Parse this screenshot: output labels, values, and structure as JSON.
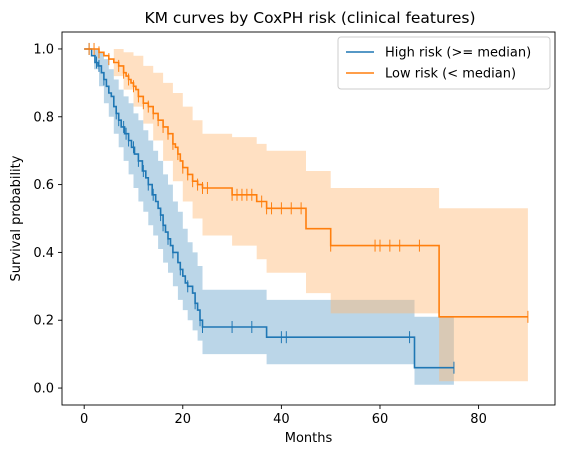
{
  "chart_data": {
    "type": "line",
    "title": "KM curves by CoxPH risk (clinical features)",
    "xlabel": "Months",
    "ylabel": "Survival probability",
    "xlim": [
      -4.5,
      95.5
    ],
    "ylim": [
      -0.05,
      1.05
    ],
    "xticks": [
      0,
      20,
      40,
      60,
      80
    ],
    "yticks": [
      0.0,
      0.2,
      0.4,
      0.6,
      0.8,
      1.0
    ],
    "legend_position": "top-right",
    "grid": false,
    "series": [
      {
        "name": "High risk (>= median)",
        "color": "#1f77b4",
        "fill_color": "#1f77b4",
        "steps": [
          [
            0,
            1.0
          ],
          [
            1.5,
            0.98
          ],
          [
            2.2,
            0.96
          ],
          [
            2.8,
            0.95
          ],
          [
            3.5,
            0.93
          ],
          [
            4.0,
            0.91
          ],
          [
            4.5,
            0.89
          ],
          [
            5.0,
            0.87
          ],
          [
            5.5,
            0.86
          ],
          [
            6.0,
            0.83
          ],
          [
            6.5,
            0.81
          ],
          [
            7.0,
            0.79
          ],
          [
            7.5,
            0.77
          ],
          [
            8.2,
            0.75
          ],
          [
            9.0,
            0.73
          ],
          [
            9.6,
            0.71
          ],
          [
            10.2,
            0.69
          ],
          [
            11.0,
            0.67
          ],
          [
            11.8,
            0.64
          ],
          [
            12.5,
            0.62
          ],
          [
            13.0,
            0.6
          ],
          [
            13.8,
            0.57
          ],
          [
            14.5,
            0.55
          ],
          [
            15.0,
            0.53
          ],
          [
            15.5,
            0.51
          ],
          [
            16.0,
            0.48
          ],
          [
            16.5,
            0.46
          ],
          [
            17.0,
            0.44
          ],
          [
            17.5,
            0.42
          ],
          [
            18.0,
            0.4
          ],
          [
            19.0,
            0.37
          ],
          [
            19.5,
            0.35
          ],
          [
            20.0,
            0.33
          ],
          [
            20.5,
            0.31
          ],
          [
            21.0,
            0.3
          ],
          [
            22.0,
            0.28
          ],
          [
            22.5,
            0.25
          ],
          [
            23.0,
            0.23
          ],
          [
            23.5,
            0.2
          ],
          [
            24.0,
            0.18
          ],
          [
            37.0,
            0.15
          ],
          [
            67.0,
            0.06
          ],
          [
            75.0,
            0.06
          ]
        ],
        "ci_upper": [
          [
            0,
            1.0
          ],
          [
            2.0,
            1.0
          ],
          [
            3.0,
            0.99
          ],
          [
            4.0,
            0.97
          ],
          [
            5.0,
            0.94
          ],
          [
            6.0,
            0.91
          ],
          [
            7.0,
            0.88
          ],
          [
            8.0,
            0.86
          ],
          [
            9.0,
            0.84
          ],
          [
            10.0,
            0.81
          ],
          [
            11.0,
            0.79
          ],
          [
            12.0,
            0.76
          ],
          [
            13.0,
            0.73
          ],
          [
            14.0,
            0.7
          ],
          [
            15.0,
            0.67
          ],
          [
            16.0,
            0.63
          ],
          [
            17.0,
            0.6
          ],
          [
            18.0,
            0.55
          ],
          [
            19.0,
            0.52
          ],
          [
            20.0,
            0.47
          ],
          [
            21.0,
            0.43
          ],
          [
            22.0,
            0.4
          ],
          [
            23.0,
            0.36
          ],
          [
            24.0,
            0.29
          ],
          [
            37.0,
            0.26
          ],
          [
            67.0,
            0.21
          ],
          [
            75.0,
            0.21
          ]
        ],
        "ci_lower": [
          [
            0,
            1.0
          ],
          [
            2.0,
            0.94
          ],
          [
            3.0,
            0.89
          ],
          [
            4.0,
            0.84
          ],
          [
            5.0,
            0.8
          ],
          [
            6.0,
            0.75
          ],
          [
            7.0,
            0.71
          ],
          [
            8.0,
            0.67
          ],
          [
            9.0,
            0.63
          ],
          [
            10.0,
            0.59
          ],
          [
            11.0,
            0.55
          ],
          [
            12.0,
            0.52
          ],
          [
            13.0,
            0.48
          ],
          [
            14.0,
            0.45
          ],
          [
            15.0,
            0.41
          ],
          [
            16.0,
            0.37
          ],
          [
            17.0,
            0.34
          ],
          [
            18.0,
            0.3
          ],
          [
            19.0,
            0.26
          ],
          [
            20.0,
            0.23
          ],
          [
            21.0,
            0.2
          ],
          [
            22.0,
            0.17
          ],
          [
            23.0,
            0.14
          ],
          [
            24.0,
            0.1
          ],
          [
            37.0,
            0.07
          ],
          [
            67.0,
            0.01
          ],
          [
            75.0,
            0.01
          ]
        ],
        "censor_x": [
          1,
          2.5,
          3,
          4,
          6.5,
          7,
          8,
          8.5,
          9,
          10,
          11,
          12,
          13,
          14,
          15.5,
          16,
          17,
          18,
          19.5,
          21,
          22.5,
          23.5,
          24,
          30,
          34,
          40,
          41,
          66,
          75
        ]
      },
      {
        "name": "Low risk (< median)",
        "color": "#ff7f0e",
        "fill_color": "#ffbb78",
        "steps": [
          [
            0,
            1.0
          ],
          [
            3.0,
            0.99
          ],
          [
            4.0,
            0.98
          ],
          [
            5.0,
            0.97
          ],
          [
            6.0,
            0.96
          ],
          [
            7.0,
            0.95
          ],
          [
            8.0,
            0.93
          ],
          [
            8.5,
            0.92
          ],
          [
            9.0,
            0.91
          ],
          [
            9.5,
            0.9
          ],
          [
            10.0,
            0.89
          ],
          [
            10.5,
            0.88
          ],
          [
            11.0,
            0.86
          ],
          [
            12.0,
            0.84
          ],
          [
            13.0,
            0.83
          ],
          [
            14.0,
            0.81
          ],
          [
            15.0,
            0.79
          ],
          [
            16.0,
            0.77
          ],
          [
            17.0,
            0.75
          ],
          [
            18.0,
            0.72
          ],
          [
            18.5,
            0.71
          ],
          [
            19.0,
            0.69
          ],
          [
            19.5,
            0.67
          ],
          [
            20.0,
            0.65
          ],
          [
            21.0,
            0.63
          ],
          [
            22.0,
            0.61
          ],
          [
            23.0,
            0.6
          ],
          [
            24.0,
            0.59
          ],
          [
            30.0,
            0.57
          ],
          [
            35.0,
            0.55
          ],
          [
            37.0,
            0.53
          ],
          [
            45.0,
            0.47
          ],
          [
            50.0,
            0.42
          ],
          [
            72.0,
            0.21
          ],
          [
            90.0,
            0.21
          ]
        ],
        "ci_upper": [
          [
            0,
            1.0
          ],
          [
            6.0,
            1.0
          ],
          [
            8.0,
            0.99
          ],
          [
            10.0,
            0.98
          ],
          [
            12.0,
            0.95
          ],
          [
            14.0,
            0.93
          ],
          [
            16.0,
            0.9
          ],
          [
            18.0,
            0.87
          ],
          [
            20.0,
            0.83
          ],
          [
            22.0,
            0.79
          ],
          [
            24.0,
            0.75
          ],
          [
            30.0,
            0.74
          ],
          [
            35.0,
            0.72
          ],
          [
            37.0,
            0.7
          ],
          [
            45.0,
            0.64
          ],
          [
            50.0,
            0.59
          ],
          [
            72.0,
            0.53
          ],
          [
            90.0,
            0.53
          ]
        ],
        "ci_lower": [
          [
            0,
            1.0
          ],
          [
            6.0,
            0.92
          ],
          [
            8.0,
            0.88
          ],
          [
            10.0,
            0.83
          ],
          [
            12.0,
            0.78
          ],
          [
            14.0,
            0.73
          ],
          [
            16.0,
            0.67
          ],
          [
            18.0,
            0.61
          ],
          [
            20.0,
            0.55
          ],
          [
            22.0,
            0.5
          ],
          [
            24.0,
            0.45
          ],
          [
            30.0,
            0.42
          ],
          [
            35.0,
            0.38
          ],
          [
            37.0,
            0.34
          ],
          [
            45.0,
            0.28
          ],
          [
            50.0,
            0.22
          ],
          [
            72.0,
            0.02
          ],
          [
            90.0,
            0.02
          ]
        ],
        "censor_x": [
          1,
          2,
          3,
          5,
          7,
          8,
          9,
          10,
          11,
          12,
          13,
          14,
          15,
          16,
          17,
          18,
          19,
          20,
          21,
          22,
          23,
          24,
          25,
          30,
          31,
          32,
          33,
          34,
          36,
          37,
          38,
          40,
          42,
          44,
          50,
          59,
          60,
          62,
          64,
          68,
          90
        ]
      }
    ]
  }
}
